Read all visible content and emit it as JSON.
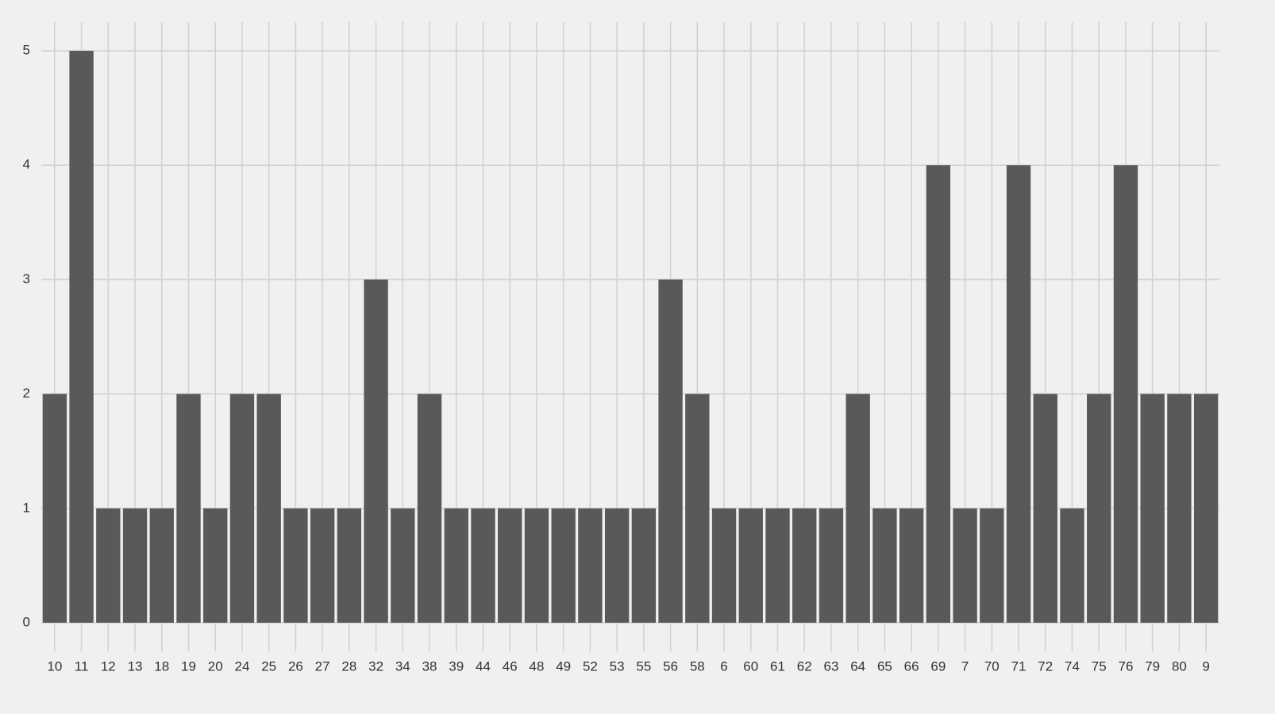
{
  "chart_data": {
    "type": "bar",
    "categories": [
      "10",
      "11",
      "12",
      "13",
      "18",
      "19",
      "20",
      "24",
      "25",
      "26",
      "27",
      "28",
      "32",
      "34",
      "38",
      "39",
      "44",
      "46",
      "48",
      "49",
      "52",
      "53",
      "55",
      "56",
      "58",
      "6",
      "60",
      "61",
      "62",
      "63",
      "64",
      "65",
      "66",
      "69",
      "7",
      "70",
      "71",
      "72",
      "74",
      "75",
      "76",
      "79",
      "80",
      "9"
    ],
    "values": [
      2,
      5,
      1,
      1,
      1,
      2,
      1,
      2,
      2,
      1,
      1,
      1,
      3,
      1,
      2,
      1,
      1,
      1,
      1,
      1,
      1,
      1,
      1,
      3,
      2,
      1,
      1,
      1,
      1,
      1,
      2,
      1,
      1,
      4,
      1,
      1,
      4,
      2,
      1,
      2,
      4,
      2,
      2,
      2
    ],
    "color": "#595959",
    "ylim": [
      -0.25,
      5.25
    ],
    "yticks": [
      0,
      1,
      2,
      3,
      4,
      5
    ],
    "grid": true
  }
}
